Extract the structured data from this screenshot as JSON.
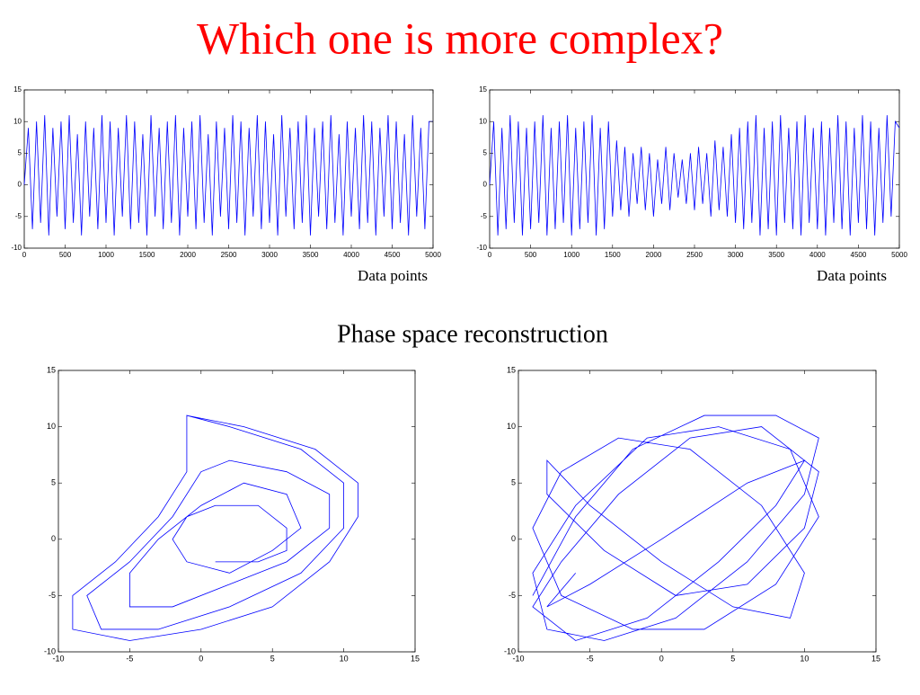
{
  "title": "Which one is more complex?",
  "subtitle": "Phase space reconstruction",
  "chart_data": [
    {
      "type": "line",
      "xlabel": "Data points",
      "x": [
        0,
        50,
        100,
        150,
        200,
        250,
        300,
        350,
        400,
        450,
        500,
        550,
        600,
        650,
        700,
        750,
        800,
        850,
        900,
        950,
        1000,
        1050,
        1100,
        1150,
        1200,
        1250,
        1300,
        1350,
        1400,
        1450,
        1500,
        1550,
        1600,
        1650,
        1700,
        1750,
        1800,
        1850,
        1900,
        1950,
        2000,
        2050,
        2100,
        2150,
        2200,
        2250,
        2300,
        2350,
        2400,
        2450,
        2500,
        2550,
        2600,
        2650,
        2700,
        2750,
        2800,
        2850,
        2900,
        2950,
        3000,
        3050,
        3100,
        3150,
        3200,
        3250,
        3300,
        3350,
        3400,
        3450,
        3500,
        3550,
        3600,
        3650,
        3700,
        3750,
        3800,
        3850,
        3900,
        3950,
        4000,
        4050,
        4100,
        4150,
        4200,
        4250,
        4300,
        4350,
        4400,
        4450,
        4500,
        4550,
        4600,
        4650,
        4700,
        4750,
        4800,
        4850,
        4900,
        4950,
        5000
      ],
      "series": [
        {
          "color": "#0000ff",
          "values": [
            0,
            9,
            -7,
            10,
            -6,
            11,
            -8,
            9,
            -5,
            10,
            -7,
            11,
            -6,
            8,
            -8,
            10,
            -5,
            9,
            -7,
            11,
            -6,
            10,
            -8,
            9,
            -5,
            11,
            -7,
            10,
            -6,
            8,
            -8,
            11,
            -5,
            9,
            -7,
            10,
            -6,
            11,
            -8,
            9,
            -5,
            10,
            -7,
            11,
            -6,
            8,
            -8,
            10,
            -5,
            9,
            -7,
            11,
            -6,
            10,
            -8,
            9,
            -5,
            11,
            -7,
            10,
            -6,
            8,
            -8,
            11,
            -5,
            9,
            -7,
            10,
            -6,
            11,
            -8,
            9,
            -5,
            10,
            -7,
            11,
            -6,
            8,
            -8,
            10,
            -5,
            9,
            -7,
            11,
            -6,
            10,
            -8,
            9,
            -5,
            11,
            -7,
            10,
            -6,
            8,
            -8,
            11,
            -5,
            9,
            -7,
            10,
            10
          ]
        }
      ],
      "xlim": [
        0,
        5000
      ],
      "xticks": [
        0,
        500,
        1000,
        1500,
        2000,
        2500,
        3000,
        3500,
        4000,
        4500,
        5000
      ],
      "ylim": [
        -10,
        15
      ],
      "yticks": [
        -10,
        -5,
        0,
        5,
        10,
        15
      ]
    },
    {
      "type": "line",
      "xlabel": "Data points",
      "x": [
        0,
        50,
        100,
        150,
        200,
        250,
        300,
        350,
        400,
        450,
        500,
        550,
        600,
        650,
        700,
        750,
        800,
        850,
        900,
        950,
        1000,
        1050,
        1100,
        1150,
        1200,
        1250,
        1300,
        1350,
        1400,
        1450,
        1500,
        1550,
        1600,
        1650,
        1700,
        1750,
        1800,
        1850,
        1900,
        1950,
        2000,
        2050,
        2100,
        2150,
        2200,
        2250,
        2300,
        2350,
        2400,
        2450,
        2500,
        2550,
        2600,
        2650,
        2700,
        2750,
        2800,
        2850,
        2900,
        2950,
        3000,
        3050,
        3100,
        3150,
        3200,
        3250,
        3300,
        3350,
        3400,
        3450,
        3500,
        3550,
        3600,
        3650,
        3700,
        3750,
        3800,
        3850,
        3900,
        3950,
        4000,
        4050,
        4100,
        4150,
        4200,
        4250,
        4300,
        4350,
        4400,
        4450,
        4500,
        4550,
        4600,
        4650,
        4700,
        4750,
        4800,
        4850,
        4900,
        4950,
        5000
      ],
      "series": [
        {
          "color": "#0000ff",
          "values": [
            0,
            10,
            -8,
            9,
            -7,
            11,
            -6,
            10,
            -8,
            9,
            -7,
            10,
            -6,
            11,
            -8,
            9,
            -7,
            10,
            -6,
            11,
            -8,
            9,
            -7,
            10,
            -6,
            11,
            -8,
            9,
            -7,
            10,
            -5,
            7,
            -4,
            6,
            -5,
            5,
            -3,
            6,
            -4,
            5,
            -5,
            4,
            -3,
            6,
            -4,
            5,
            -2,
            4,
            -3,
            5,
            -4,
            6,
            -3,
            5,
            -5,
            7,
            -4,
            6,
            -5,
            8,
            -6,
            9,
            -7,
            10,
            -6,
            11,
            -8,
            9,
            -7,
            10,
            -8,
            11,
            -6,
            9,
            -7,
            10,
            -8,
            11,
            -6,
            9,
            -7,
            10,
            -8,
            9,
            -6,
            11,
            -7,
            10,
            -8,
            9,
            -6,
            11,
            -7,
            10,
            -8,
            9,
            -6,
            11,
            -5,
            10,
            9
          ]
        }
      ],
      "xlim": [
        0,
        5000
      ],
      "xticks": [
        0,
        500,
        1000,
        1500,
        2000,
        2500,
        3000,
        3500,
        4000,
        4500,
        5000
      ],
      "ylim": [
        -10,
        15
      ],
      "yticks": [
        -10,
        -5,
        0,
        5,
        10,
        15
      ]
    },
    {
      "type": "line",
      "x": [
        -1,
        3,
        8,
        11,
        11,
        9,
        5,
        0,
        -5,
        -9,
        -9,
        -6,
        -3,
        -1,
        -1,
        -1,
        2,
        7,
        10,
        10,
        7,
        2,
        -3,
        -7,
        -8,
        -5,
        -2,
        0,
        2,
        6,
        9,
        9,
        6,
        2,
        -2,
        -5,
        -5,
        -3,
        0,
        3,
        6,
        7,
        5,
        2,
        -1,
        -2,
        -1,
        1,
        4,
        6,
        6,
        4,
        1
      ],
      "series": [
        {
          "color": "#0000ff",
          "values": [
            11,
            10,
            8,
            5,
            2,
            -2,
            -6,
            -8,
            -9,
            -8,
            -5,
            -2,
            2,
            6,
            10,
            11,
            10,
            8,
            5,
            1,
            -3,
            -6,
            -8,
            -8,
            -5,
            -2,
            2,
            6,
            7,
            6,
            4,
            1,
            -2,
            -4,
            -6,
            -6,
            -3,
            0,
            3,
            5,
            4,
            1,
            -1,
            -3,
            -2,
            0,
            2,
            3,
            3,
            1,
            -1,
            -2,
            -2
          ]
        }
      ],
      "xlim": [
        -10,
        15
      ],
      "xticks": [
        -10,
        -5,
        0,
        5,
        10,
        15
      ],
      "ylim": [
        -10,
        15
      ],
      "yticks": [
        -10,
        -5,
        0,
        5,
        10,
        15
      ]
    },
    {
      "type": "line",
      "x": [
        -9,
        -6,
        -2,
        3,
        8,
        11,
        10,
        6,
        1,
        -4,
        -8,
        -9,
        -6,
        -1,
        4,
        9,
        11,
        8,
        3,
        -2,
        -7,
        -9,
        -7,
        -3,
        2,
        7,
        10,
        9,
        5,
        0,
        -5,
        -8,
        -8,
        -4,
        1,
        6,
        10,
        11,
        7,
        2,
        -3,
        -7,
        -9,
        -6,
        -1,
        4,
        8,
        10,
        6,
        0,
        -5,
        -8,
        -6
      ],
      "series": [
        {
          "color": "#0000ff",
          "values": [
            -5,
            2,
            8,
            11,
            11,
            9,
            4,
            -2,
            -7,
            -9,
            -8,
            -3,
            3,
            9,
            10,
            8,
            2,
            -4,
            -8,
            -8,
            -5,
            1,
            6,
            9,
            8,
            3,
            -3,
            -7,
            -6,
            -2,
            3,
            7,
            4,
            -1,
            -5,
            -4,
            1,
            6,
            10,
            9,
            4,
            -2,
            -6,
            -9,
            -7,
            -2,
            3,
            7,
            5,
            0,
            -4,
            -6,
            -3
          ]
        }
      ],
      "xlim": [
        -10,
        15
      ],
      "xticks": [
        -10,
        -5,
        0,
        5,
        10,
        15
      ],
      "ylim": [
        -10,
        15
      ],
      "yticks": [
        -10,
        -5,
        0,
        5,
        10,
        15
      ]
    }
  ]
}
